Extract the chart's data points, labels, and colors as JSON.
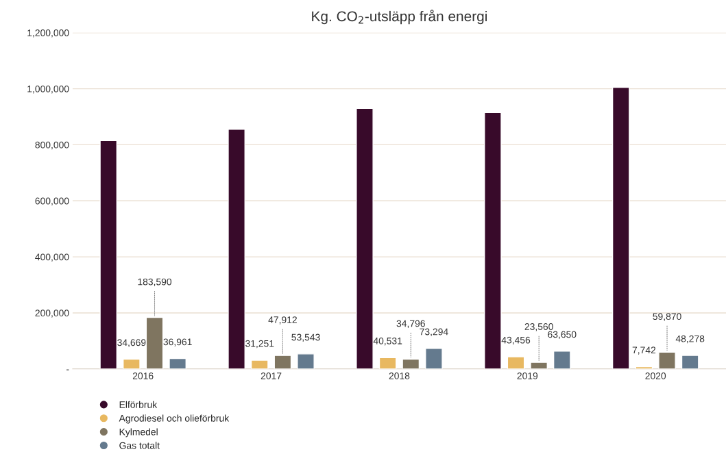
{
  "chart_data": {
    "type": "bar",
    "title": "Kg. CO$_{2}$-utsläpp från energi",
    "categories": [
      "2016",
      "2017",
      "2018",
      "2019",
      "2020"
    ],
    "series": [
      {
        "name": "Elförbruk",
        "color": "#380a2a",
        "values": [
          815000,
          855000,
          930000,
          915000,
          1005000
        ]
      },
      {
        "name": "Agrodiesel och olieförbruk",
        "color": "#e8b860",
        "values": [
          34669,
          31251,
          40531,
          43456,
          7742
        ],
        "value_labels": [
          "34,669",
          "31,251",
          "40,531",
          "43,456",
          "7,742"
        ]
      },
      {
        "name": "Kylmedel",
        "color": "#7f7560",
        "values": [
          183590,
          47912,
          34796,
          23560,
          59870
        ],
        "value_labels": [
          "183,590",
          "47,912",
          "34,796",
          "23,560",
          "59,870"
        ]
      },
      {
        "name": "Gas totalt",
        "color": "#647a8e",
        "values": [
          36961,
          53543,
          73294,
          63650,
          48278
        ],
        "value_labels": [
          "36,961",
          "53,543",
          "73,294",
          "63,650",
          "48,278"
        ]
      }
    ],
    "ylim": [
      0,
      1200000
    ],
    "yticks": [
      {
        "value": 0,
        "label": "-"
      },
      {
        "value": 200000,
        "label": "200,000"
      },
      {
        "value": 400000,
        "label": "400,000"
      },
      {
        "value": 600000,
        "label": "600,000"
      },
      {
        "value": 800000,
        "label": "800,000"
      },
      {
        "value": 1000000,
        "label": "1,000,000"
      },
      {
        "value": 1200000,
        "label": "1,200,000"
      }
    ],
    "grid": "y",
    "legend": "bottom left"
  }
}
